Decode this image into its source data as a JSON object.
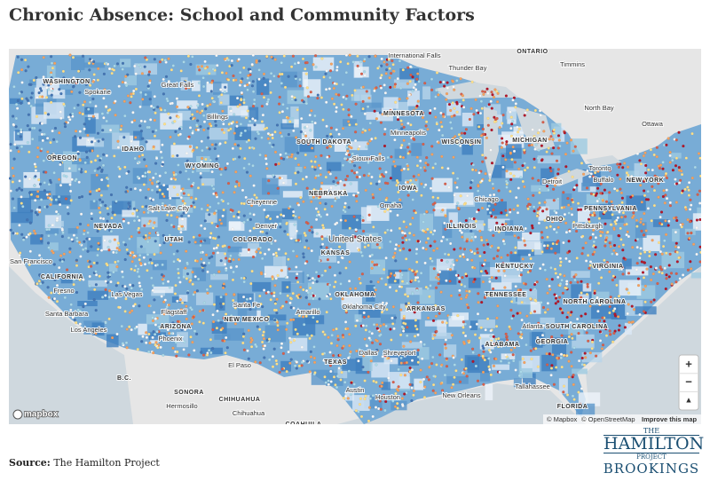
{
  "header": {
    "title": "Chronic Absence: School and Community Factors"
  },
  "map": {
    "labels": [
      "ONTARIO",
      "Thunder Bay",
      "Timmins",
      "International Falls",
      "North Bay",
      "Ottawa",
      "WASHINGTON",
      "Spokane",
      "Great Falls",
      "Billings",
      "MINNESOTA",
      "OREGON",
      "IDAHO",
      "WYOMING",
      "SOUTH DAKOTA",
      "Minneapolis",
      "WISCONSIN",
      "MICHIGAN",
      "Toronto",
      "Buffalo",
      "NEW YORK",
      "Sioux Falls",
      "NEBRASKA",
      "IOWA",
      "Omaha",
      "Chicago",
      "Detroit",
      "PENNSYLVANIA",
      "Cheyenne",
      "Salt Lake City",
      "NEVADA",
      "UTAH",
      "COLORADO",
      "Denver",
      "United States",
      "KANSAS",
      "ILLINOIS",
      "INDIANA",
      "OHIO",
      "Pittsburgh",
      "VIRGINIA",
      "KENTUCKY",
      "San Francisco",
      "CALIFORNIA",
      "Fresno",
      "Las Vegas",
      "OKLAHOMA",
      "TENNESSEE",
      "NORTH CAROLINA",
      "Santa Barbara",
      "Flagstaff",
      "ARIZONA",
      "Santa Fe",
      "NEW MEXICO",
      "Amarillo",
      "Oklahoma City",
      "ARKANSAS",
      "Atlanta",
      "SOUTH CAROLINA",
      "Los Angeles",
      "Phoenix",
      "ALABAMA",
      "GEORGIA",
      "Dallas",
      "TEXAS",
      "El Paso",
      "Shreveport",
      "B.C.",
      "SONORA",
      "CHIHUAHUA",
      "Hermosillo",
      "Chihuahua",
      "Austin",
      "Houston",
      "New Orleans",
      "Tallahassee",
      "FLORIDA",
      "COAHUILA"
    ],
    "attribution": [
      "© Mapbox",
      "© OpenStreetMap",
      "Improve this map"
    ],
    "logo": "mapbox",
    "controls": [
      "+",
      "−",
      "▲"
    ]
  },
  "footer": {
    "source_label": "Source:",
    "source_text": "The Hamilton Project",
    "logo": [
      "THE",
      "HAMILTON",
      "PROJECT",
      "BROOKINGS"
    ]
  }
}
